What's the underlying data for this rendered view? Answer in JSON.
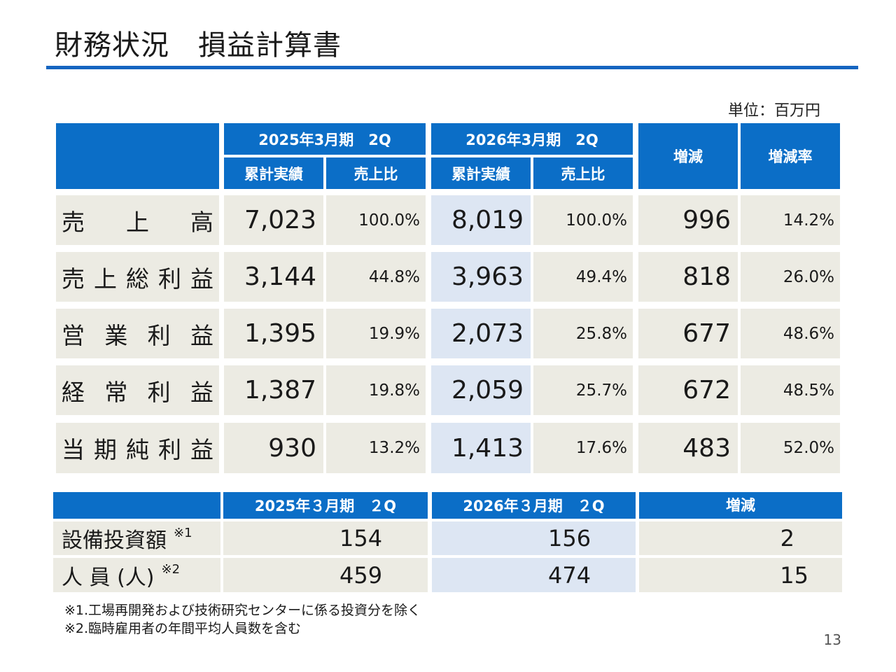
{
  "title": "財務状況　損益計算書",
  "unit": "単位：百万円",
  "pl_table": {
    "period_headers": [
      "2025年3月期　2Q",
      "2026年3月期　2Q"
    ],
    "sub_headers": [
      "累計実績",
      "売上比",
      "累計実績",
      "売上比"
    ],
    "change_header": "増減",
    "change_rate_header": "増減率",
    "rows": [
      {
        "label_chars": [
          "売",
          "上",
          "高"
        ],
        "prev": "7,023",
        "prev_ratio": "100.0%",
        "curr": "8,019",
        "curr_ratio": "100.0%",
        "change": "996",
        "rate": "14.2%"
      },
      {
        "label_chars": [
          "売",
          "上",
          "総",
          "利",
          "益"
        ],
        "prev": "3,144",
        "prev_ratio": "44.8%",
        "curr": "3,963",
        "curr_ratio": "49.4%",
        "change": "818",
        "rate": "26.0%"
      },
      {
        "label_chars": [
          "営",
          "業",
          "利",
          "益"
        ],
        "prev": "1,395",
        "prev_ratio": "19.9%",
        "curr": "2,073",
        "curr_ratio": "25.8%",
        "change": "677",
        "rate": "48.6%"
      },
      {
        "label_chars": [
          "経",
          "常",
          "利",
          "益"
        ],
        "prev": "1,387",
        "prev_ratio": "19.8%",
        "curr": "2,059",
        "curr_ratio": "25.7%",
        "change": "672",
        "rate": "48.5%"
      },
      {
        "label_chars": [
          "当",
          "期",
          "純",
          "利",
          "益"
        ],
        "prev": "930",
        "prev_ratio": "13.2%",
        "curr": "1,413",
        "curr_ratio": "17.6%",
        "change": "483",
        "rate": "52.0%"
      }
    ]
  },
  "capex_table": {
    "period_headers": [
      "2025年３月期　２Q",
      "2026年３月期　２Q"
    ],
    "change_header": "増減",
    "rows": [
      {
        "label": "設備投資額",
        "note": "※1",
        "prev": "154",
        "curr": "156",
        "change": "2"
      },
      {
        "label": "人 員 (人)",
        "note": "※2",
        "prev": "459",
        "curr": "474",
        "change": "15"
      }
    ]
  },
  "footnotes": [
    "※1.工場再開発および技術研究センターに係る投資分を除く",
    "※2.臨時雇用者の年間平均人員数を含む"
  ],
  "page_number": "13"
}
